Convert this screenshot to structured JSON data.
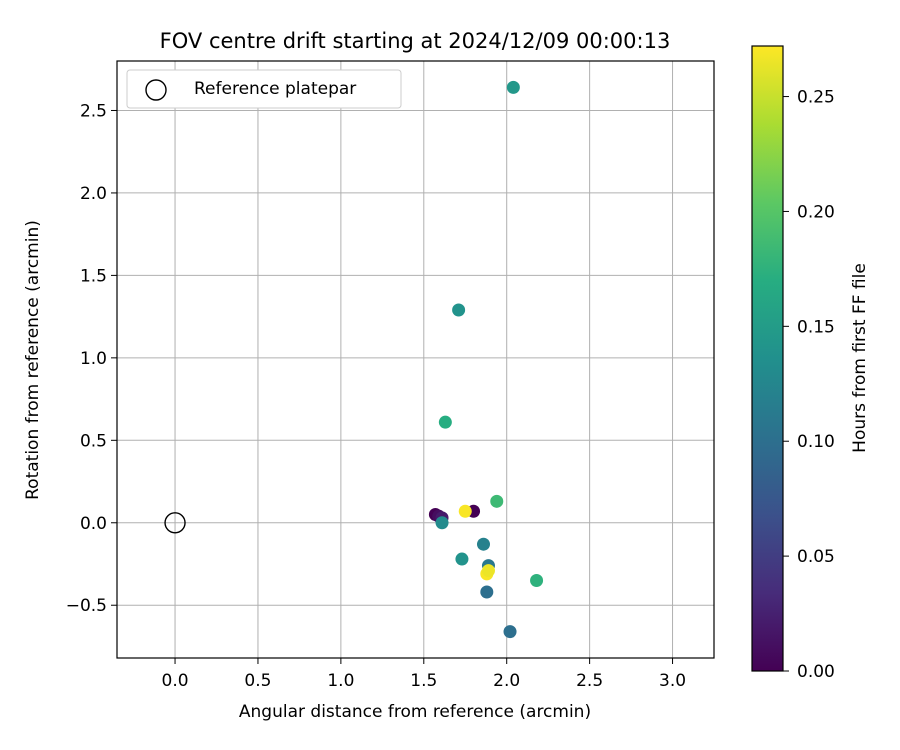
{
  "chart_data": {
    "type": "scatter",
    "title": "FOV centre drift starting at 2024/12/09 00:00:13",
    "xlabel": "Angular distance from reference (arcmin)",
    "ylabel": "Rotation from reference (arcmin)",
    "xlim": [
      -0.35,
      3.25
    ],
    "ylim": [
      -0.82,
      2.8
    ],
    "xticks": [
      "0.0",
      "0.5",
      "1.0",
      "1.5",
      "2.0",
      "2.5",
      "3.0"
    ],
    "yticks": [
      "−0.5",
      "0.0",
      "0.5",
      "1.0",
      "1.5",
      "2.0",
      "2.5"
    ],
    "grid": true,
    "legend": {
      "placement": "upper-left",
      "entries": [
        "Reference platepar"
      ]
    },
    "reference_point": {
      "x": 0.0,
      "y": 0.0
    },
    "colorbar": {
      "label": "Hours from first FF file",
      "range": [
        0.0,
        0.272
      ],
      "ticks": [
        "0.00",
        "0.05",
        "0.10",
        "0.15",
        "0.20",
        "0.25"
      ],
      "colormap": "viridis"
    },
    "points": [
      {
        "x": 1.57,
        "y": 0.05,
        "c": 0.0
      },
      {
        "x": 1.59,
        "y": 0.04,
        "c": 0.01
      },
      {
        "x": 1.61,
        "y": 0.03,
        "c": 0.02
      },
      {
        "x": 1.8,
        "y": 0.07,
        "c": 0.0
      },
      {
        "x": 2.02,
        "y": -0.66,
        "c": 0.1
      },
      {
        "x": 1.88,
        "y": -0.42,
        "c": 0.1
      },
      {
        "x": 1.89,
        "y": -0.26,
        "c": 0.11
      },
      {
        "x": 1.86,
        "y": -0.13,
        "c": 0.12
      },
      {
        "x": 1.61,
        "y": 0.0,
        "c": 0.13
      },
      {
        "x": 1.73,
        "y": -0.22,
        "c": 0.14
      },
      {
        "x": 1.71,
        "y": 1.29,
        "c": 0.14
      },
      {
        "x": 2.04,
        "y": 2.64,
        "c": 0.145
      },
      {
        "x": 1.63,
        "y": 0.61,
        "c": 0.17
      },
      {
        "x": 2.18,
        "y": -0.35,
        "c": 0.175
      },
      {
        "x": 1.94,
        "y": 0.13,
        "c": 0.185
      },
      {
        "x": 1.75,
        "y": 0.07,
        "c": 0.27
      },
      {
        "x": 1.88,
        "y": -0.31,
        "c": 0.27
      },
      {
        "x": 1.89,
        "y": -0.29,
        "c": 0.265
      }
    ]
  }
}
